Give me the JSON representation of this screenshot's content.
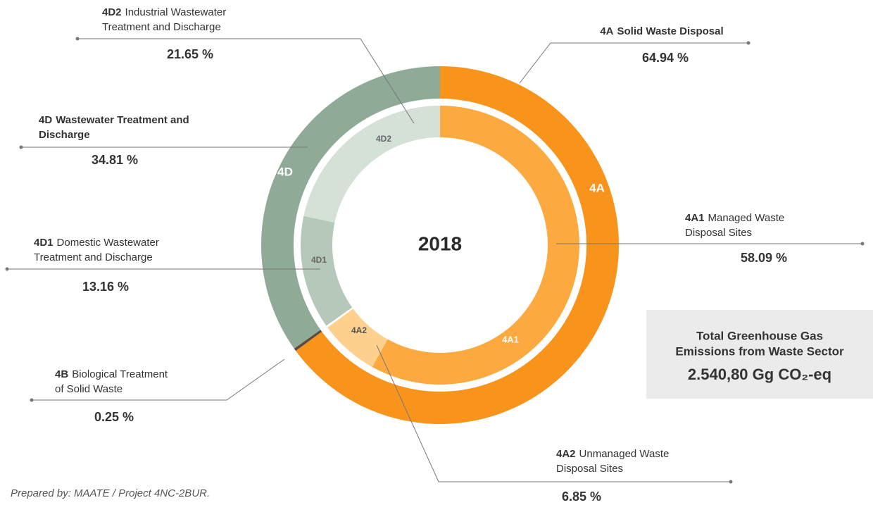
{
  "chart_data": {
    "type": "nested-donut",
    "center_label": "2018",
    "categories": [
      {
        "code": "4A",
        "name_lines": [
          "Solid Waste Disposal"
        ],
        "value": 64.94,
        "value_label": "64.94 %",
        "color": "#f8941c",
        "children": [
          {
            "code": "4A1",
            "name_lines": [
              "Managed Waste",
              "Disposal Sites"
            ],
            "value": 58.09,
            "value_label": "58.09 %",
            "color": "#fca940"
          },
          {
            "code": "4A2",
            "name_lines": [
              "Unmanaged Waste",
              "Disposal Sites"
            ],
            "value": 6.85,
            "value_label": "6.85 %",
            "color": "#fdd08e"
          }
        ]
      },
      {
        "code": "4B",
        "name_lines": [
          "Biological Treatment",
          "of Solid Waste"
        ],
        "value": 0.25,
        "value_label": "0.25 %",
        "color": "#5b4a3e",
        "children": []
      },
      {
        "code": "4D",
        "name_lines": [
          "Wastewater Treatment and",
          "Discharge"
        ],
        "value": 34.81,
        "value_label": "34.81 %",
        "color": "#8fab97",
        "children": [
          {
            "code": "4D1",
            "name_lines": [
              "Domestic Wastewater",
              "Treatment and Discharge"
            ],
            "value": 13.16,
            "value_label": "13.16 %",
            "color": "#b5c8b9"
          },
          {
            "code": "4D2",
            "name_lines": [
              "Industrial Wastewater",
              "Treatment and Discharge"
            ],
            "value": 21.65,
            "value_label": "21.65 %",
            "color": "#d5e0d7"
          }
        ]
      }
    ],
    "total_box": {
      "lines": [
        "Total Greenhouse Gas",
        "Emissions from Waste Sector"
      ],
      "value_label": "2.540,80 Gg CO₂-eq"
    },
    "source": "Prepared by: MAATE / Project 4NC-2BUR."
  }
}
